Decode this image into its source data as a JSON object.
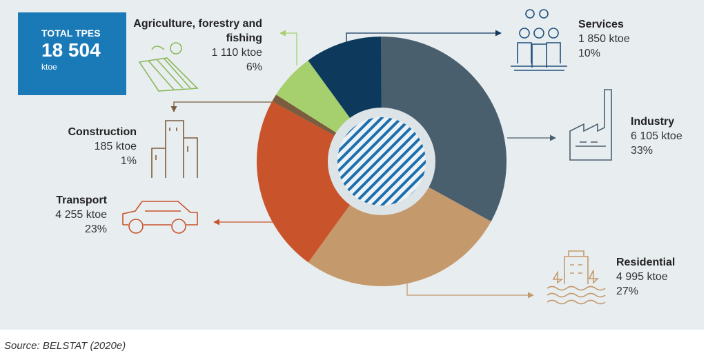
{
  "chart_data": {
    "type": "donut",
    "total": {
      "title": "TOTAL TPES",
      "value": 18504,
      "label": "18 504",
      "unit": "ktoe"
    },
    "categories": [
      "Industry",
      "Residential",
      "Transport",
      "Construction",
      "Agriculture, forestry and fishing",
      "Services"
    ],
    "values": [
      6105,
      4995,
      4255,
      185,
      1110,
      1850
    ],
    "value_labels": [
      "6 105 ktoe",
      "4 995 ktoe",
      "4 255 ktoe",
      "185 ktoe",
      "1 110 ktoe",
      "1 850 ktoe"
    ],
    "share_labels": [
      "33%",
      "27%",
      "23%",
      "1%",
      "6%",
      "10%"
    ],
    "colors": [
      "#4a5f6e",
      "#c49a6c",
      "#c9532a",
      "#7a5c3e",
      "#a5d06d",
      "#0d3a5c"
    ],
    "source": "Source: BELSTAT (2020e)"
  }
}
